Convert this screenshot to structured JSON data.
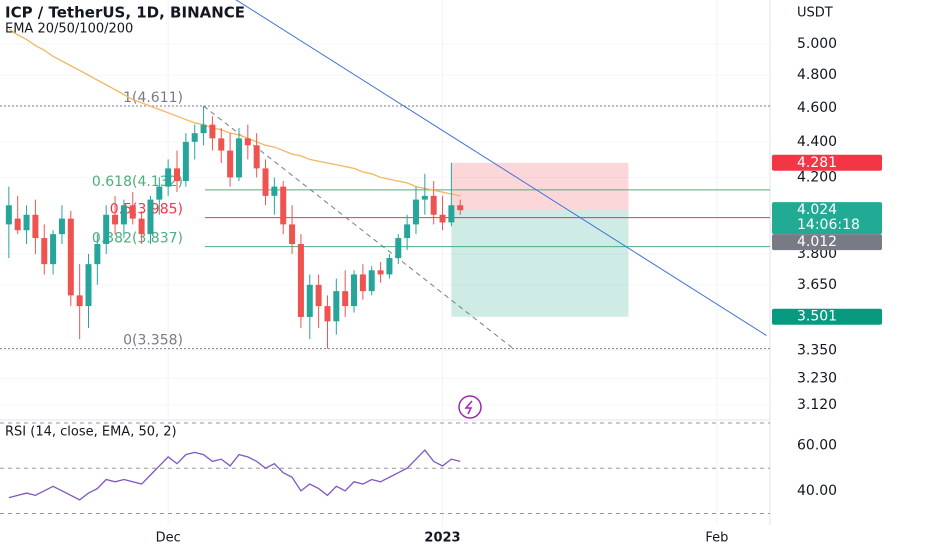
{
  "chart_data": {
    "type": "candlestick",
    "title": "ICP / TetherUS, 1D, BINANCE",
    "subtitle": "EMA 20/50/100/200",
    "currency": "USDT",
    "log": true,
    "xlim": [
      -1,
      86
    ],
    "ylim": [
      3.067,
      5.296
    ],
    "xticks": [
      {
        "value": 18,
        "label": "Dec"
      },
      {
        "value": 49,
        "label": "2023"
      },
      {
        "value": 80,
        "label": "Feb"
      }
    ],
    "yticks": [
      {
        "value": 5,
        "label": "5.000"
      },
      {
        "value": 4.8,
        "label": "4.800"
      },
      {
        "value": 4.6,
        "label": "4.600"
      },
      {
        "value": 4.4,
        "label": "4.400"
      },
      {
        "value": 4.2,
        "label": "4.200"
      },
      {
        "value": 3.8,
        "label": "3.800"
      },
      {
        "value": 3.65,
        "label": "3.650"
      },
      {
        "value": 3.35,
        "label": "3.350"
      },
      {
        "value": 3.23,
        "label": "3.230"
      },
      {
        "value": 3.12,
        "label": "3.120"
      }
    ],
    "up_color": "#26a69a",
    "down_color": "#ef5350",
    "ema_color": "#f5b561",
    "open": [
      3.95,
      3.98,
      3.92,
      4.0,
      3.88,
      3.75,
      3.9,
      3.98,
      3.6,
      3.55,
      3.75,
      3.85,
      4.0,
      3.95,
      4.05,
      3.98,
      3.9,
      4.08,
      4.15,
      4.25,
      4.18,
      4.4,
      4.45,
      4.5,
      4.42,
      4.35,
      4.2,
      4.42,
      4.38,
      4.25,
      4.1,
      4.15,
      3.95,
      3.85,
      3.5,
      3.65,
      3.55,
      3.48,
      3.62,
      3.55,
      3.7,
      3.62,
      3.72,
      3.7,
      3.78,
      3.88,
      3.95,
      4.08,
      4.1,
      4.0,
      3.96,
      4.05
    ],
    "high": [
      4.15,
      4.1,
      4.05,
      4.08,
      3.95,
      3.92,
      4.05,
      4.02,
      3.75,
      3.8,
      3.9,
      4.05,
      4.1,
      4.08,
      4.12,
      4.02,
      4.1,
      4.2,
      4.3,
      4.35,
      4.45,
      4.5,
      4.611,
      4.55,
      4.48,
      4.45,
      4.48,
      4.5,
      4.45,
      4.3,
      4.2,
      4.18,
      4.05,
      3.9,
      3.7,
      3.7,
      3.6,
      3.68,
      3.72,
      3.72,
      3.75,
      3.74,
      3.76,
      3.8,
      3.9,
      4.0,
      4.15,
      4.22,
      4.18,
      4.1,
      4.281,
      4.08
    ],
    "low": [
      3.78,
      3.9,
      3.85,
      3.8,
      3.7,
      3.7,
      3.85,
      3.55,
      3.4,
      3.45,
      3.65,
      3.8,
      3.9,
      3.88,
      3.95,
      3.85,
      3.85,
      4.0,
      4.1,
      4.12,
      4.15,
      4.3,
      4.38,
      4.35,
      4.28,
      4.15,
      4.18,
      4.3,
      4.2,
      4.05,
      4.0,
      3.9,
      3.8,
      3.45,
      3.4,
      3.45,
      3.358,
      3.42,
      3.5,
      3.52,
      3.58,
      3.6,
      3.66,
      3.68,
      3.75,
      3.82,
      3.9,
      4.0,
      3.95,
      3.92,
      3.94,
      4.0
    ],
    "close": [
      4.05,
      3.92,
      4.0,
      3.88,
      3.75,
      3.9,
      3.98,
      3.6,
      3.55,
      3.75,
      3.85,
      4.0,
      3.95,
      4.05,
      3.98,
      3.9,
      4.08,
      4.15,
      4.25,
      4.18,
      4.4,
      4.45,
      4.5,
      4.42,
      4.35,
      4.2,
      4.42,
      4.38,
      4.25,
      4.1,
      4.15,
      3.95,
      3.85,
      3.5,
      3.65,
      3.55,
      3.48,
      3.62,
      3.55,
      3.7,
      3.62,
      3.72,
      3.7,
      3.78,
      3.88,
      3.95,
      4.08,
      4.1,
      4.0,
      3.96,
      4.05,
      4.024
    ],
    "ema": [
      5.1,
      5.06,
      5.03,
      4.99,
      4.96,
      4.92,
      4.89,
      4.86,
      4.83,
      4.8,
      4.77,
      4.74,
      4.71,
      4.68,
      4.65,
      4.63,
      4.61,
      4.59,
      4.57,
      4.55,
      4.53,
      4.51,
      4.5,
      4.48,
      4.47,
      4.45,
      4.44,
      4.42,
      4.4,
      4.38,
      4.37,
      4.35,
      4.33,
      4.32,
      4.3,
      4.29,
      4.28,
      4.27,
      4.26,
      4.25,
      4.23,
      4.22,
      4.2,
      4.19,
      4.18,
      4.17,
      4.15,
      4.14,
      4.13,
      4.12,
      4.11,
      4.1
    ],
    "fib": [
      {
        "label": "1(4.611)",
        "value": 4.611,
        "color": "#787b86"
      },
      {
        "label": "0.618(4.132)",
        "value": 4.132,
        "color": "#4caf7d"
      },
      {
        "label": "0.5(3.985)",
        "value": 3.985,
        "color": "#f23645"
      },
      {
        "label": "0.382(3.837)",
        "value": 3.837,
        "color": "#4caf7d"
      },
      {
        "label": "0(3.358)",
        "value": 3.358,
        "color": "#787b86"
      }
    ],
    "trendline": {
      "x": [
        25.6,
        85.6
      ],
      "y": [
        5.3,
        3.416
      ],
      "color": "#3a6fd8"
    },
    "dashed_line": {
      "x": [
        22,
        57
      ],
      "y": [
        4.611,
        3.358
      ],
      "color": "#787b86"
    },
    "position": {
      "x": [
        50,
        70
      ],
      "entry": 4.024,
      "stop": 4.281,
      "target": 3.501
    },
    "price_tags": [
      {
        "label": "4.281",
        "value": 4.281,
        "color": "#f23645"
      },
      {
        "label": "4.024",
        "value": 4.024,
        "color": "#22ab94"
      },
      {
        "label": "4.012",
        "value": 4.012,
        "color": "#787b86"
      },
      {
        "label": "3.501",
        "value": 3.501,
        "color": "#089981"
      }
    ],
    "countdown": "14:06:18",
    "rsi": {
      "title": "RSI (14, close, EMA, 50, 2)",
      "color": "#7e57c2",
      "ylim": [
        24.9,
        71.3
      ],
      "yticks": [
        {
          "value": 60,
          "label": "60.00"
        },
        {
          "value": 40,
          "label": "40.00"
        }
      ],
      "levels": [
        70,
        50,
        30
      ],
      "values": [
        37,
        38,
        39,
        38,
        40,
        42,
        40,
        38,
        36,
        39,
        41,
        45,
        44,
        45,
        44,
        43,
        47,
        51,
        55,
        52,
        56,
        57,
        56,
        53,
        54,
        51,
        56,
        55,
        53,
        50,
        52,
        48,
        46,
        40,
        43,
        41,
        38,
        42,
        40,
        44,
        43,
        45,
        44,
        46,
        48,
        50,
        54,
        58,
        53,
        51,
        54,
        53
      ]
    }
  }
}
